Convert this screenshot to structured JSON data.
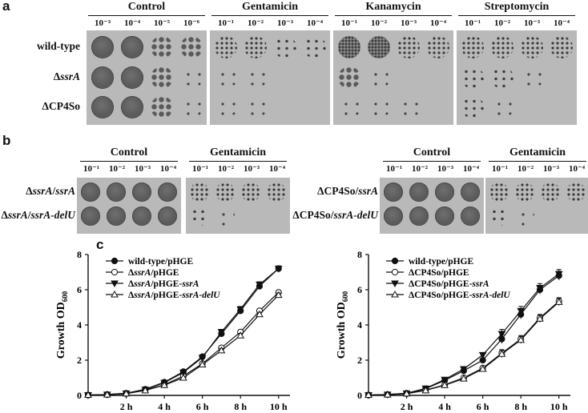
{
  "figure": {
    "panels": {
      "a": {
        "letter": "a",
        "groups": [
          {
            "title": "Control",
            "dilutions": [
              "10⁻³",
              "10⁻⁴",
              "10⁻⁵",
              "10⁻⁶"
            ]
          },
          {
            "title": "Gentamicin",
            "dilutions": [
              "10⁻¹",
              "10⁻²",
              "10⁻³",
              "10⁻⁴"
            ]
          },
          {
            "title": "Kanamycin",
            "dilutions": [
              "10⁻¹",
              "10⁻²",
              "10⁻³",
              "10⁻⁴"
            ]
          },
          {
            "title": "Streptomycin",
            "dilutions": [
              "10⁻¹",
              "10⁻²",
              "10⁻³",
              "10⁻⁴"
            ]
          }
        ],
        "rows": [
          "wild-type",
          "ΔssrA",
          "ΔCP4So"
        ]
      },
      "b": {
        "letter": "b",
        "left": {
          "groups": [
            {
              "title": "Control",
              "dilutions": [
                "10⁻¹",
                "10⁻²",
                "10⁻³",
                "10⁻⁴"
              ]
            },
            {
              "title": "Gentamicin",
              "dilutions": [
                "10⁻¹",
                "10⁻²",
                "10⁻³",
                "10⁻⁴"
              ]
            }
          ],
          "rows": [
            "ΔssrA/ssrA",
            "ΔssrA/ssrA-delU"
          ]
        },
        "right": {
          "groups": [
            {
              "title": "Control",
              "dilutions": [
                "10⁻¹",
                "10⁻²",
                "10⁻³",
                "10⁻⁴"
              ]
            },
            {
              "title": "Gentamicin",
              "dilutions": [
                "10⁻¹",
                "10⁻²",
                "10⁻³",
                "10⁻⁴"
              ]
            }
          ],
          "rows": [
            "ΔCP4So/ssrA",
            "ΔCP4So/ssrA-delU"
          ]
        }
      },
      "c": {
        "letter": "c"
      }
    }
  },
  "chart_data": [
    {
      "type": "line",
      "ylabel": "Growth OD600",
      "xlabel": "",
      "x": [
        0,
        1,
        2,
        3,
        4,
        5,
        6,
        7,
        8,
        9,
        10
      ],
      "xticks": [
        "2 h",
        "4 h",
        "6 h",
        "8 h",
        "10 h"
      ],
      "xtick_values": [
        2,
        4,
        6,
        8,
        10
      ],
      "xlim": [
        0,
        10.6
      ],
      "yticks": [
        "0",
        "2",
        "4",
        "6",
        "8"
      ],
      "ylim": [
        0,
        8
      ],
      "legend_position": "top-left",
      "series": [
        {
          "name": "wild-type/pHGE",
          "marker": "filled-circle",
          "values": [
            0.02,
            0.05,
            0.12,
            0.35,
            0.75,
            1.35,
            2.2,
            3.5,
            4.8,
            6.2,
            7.2
          ],
          "err": 0.15
        },
        {
          "name": "ΔssrA/pHGE",
          "marker": "open-circle",
          "values": [
            0.02,
            0.04,
            0.1,
            0.3,
            0.6,
            1.1,
            1.8,
            2.7,
            3.6,
            4.8,
            5.85
          ],
          "err": 0.12
        },
        {
          "name": "ΔssrA/pHGE-ssrA",
          "marker": "filled-triangle",
          "values": [
            0.02,
            0.05,
            0.12,
            0.33,
            0.72,
            1.3,
            2.15,
            3.6,
            4.9,
            6.3,
            7.2
          ],
          "err": 0.15
        },
        {
          "name": "ΔssrA/pHGE-ssrA-delU",
          "marker": "open-triangle",
          "values": [
            0.02,
            0.04,
            0.1,
            0.28,
            0.58,
            1.0,
            1.75,
            2.55,
            3.4,
            4.6,
            5.7
          ],
          "err": 0.12
        }
      ]
    },
    {
      "type": "line",
      "ylabel": "Growth OD600",
      "xlabel": "",
      "x": [
        0,
        1,
        2,
        3,
        4,
        5,
        6,
        7,
        8,
        9,
        10
      ],
      "xticks": [
        "2 h",
        "4 h",
        "6 h",
        "8 h",
        "10 h"
      ],
      "xtick_values": [
        2,
        4,
        6,
        8,
        10
      ],
      "xlim": [
        0,
        10.6
      ],
      "yticks": [
        "0",
        "2",
        "4",
        "6",
        "8"
      ],
      "ylim": [
        0,
        8
      ],
      "legend_position": "top-left",
      "series": [
        {
          "name": "wild-type/pHGE",
          "marker": "filled-circle",
          "values": [
            0.02,
            0.05,
            0.12,
            0.38,
            0.85,
            1.4,
            2.0,
            3.2,
            4.6,
            6.0,
            6.8
          ],
          "err": 0.25
        },
        {
          "name": "ΔCP4So/pHGE",
          "marker": "open-circle",
          "values": [
            0.02,
            0.04,
            0.1,
            0.3,
            0.6,
            1.0,
            1.55,
            2.4,
            3.2,
            4.4,
            5.35
          ],
          "err": 0.2
        },
        {
          "name": "ΔCP4So/pHGE-ssrA",
          "marker": "filled-triangle",
          "values": [
            0.02,
            0.05,
            0.12,
            0.4,
            0.9,
            1.5,
            2.3,
            3.5,
            4.8,
            6.1,
            6.9
          ],
          "err": 0.25
        },
        {
          "name": "ΔCP4So/pHGE-ssrA-delU",
          "marker": "open-triangle",
          "values": [
            0.02,
            0.04,
            0.1,
            0.28,
            0.58,
            0.95,
            1.5,
            2.35,
            3.15,
            4.35,
            5.3
          ],
          "err": 0.2
        }
      ]
    }
  ]
}
